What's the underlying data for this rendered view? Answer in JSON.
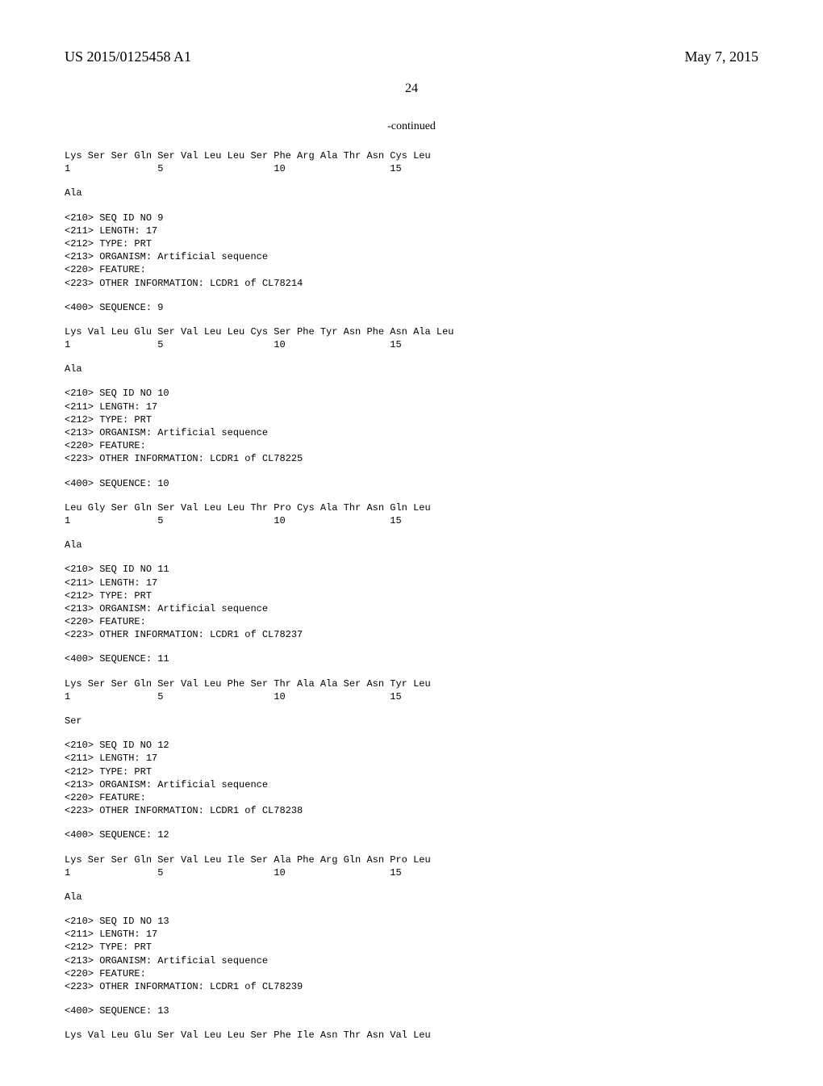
{
  "header": {
    "left": "US 2015/0125458 A1",
    "right": "May 7, 2015"
  },
  "page_number": "24",
  "continued": "-continued",
  "blocks": [
    {
      "type": "seq",
      "text": "Lys Ser Ser Gln Ser Val Leu Leu Ser Phe Arg Ala Thr Asn Cys Leu\n1               5                   10                  15"
    },
    {
      "type": "seq",
      "text": "Ala"
    },
    {
      "type": "meta",
      "lines": [
        "<210> SEQ ID NO 9",
        "<211> LENGTH: 17",
        "<212> TYPE: PRT",
        "<213> ORGANISM: Artificial sequence",
        "<220> FEATURE:",
        "<223> OTHER INFORMATION: LCDR1 of CL78214"
      ]
    },
    {
      "type": "meta",
      "lines": [
        "<400> SEQUENCE: 9"
      ]
    },
    {
      "type": "seq",
      "text": "Lys Val Leu Glu Ser Val Leu Leu Cys Ser Phe Tyr Asn Phe Asn Ala Leu\n1               5                   10                  15"
    },
    {
      "type": "seq",
      "text": "Ala"
    },
    {
      "type": "meta",
      "lines": [
        "<210> SEQ ID NO 10",
        "<211> LENGTH: 17",
        "<212> TYPE: PRT",
        "<213> ORGANISM: Artificial sequence",
        "<220> FEATURE:",
        "<223> OTHER INFORMATION: LCDR1 of CL78225"
      ]
    },
    {
      "type": "meta",
      "lines": [
        "<400> SEQUENCE: 10"
      ]
    },
    {
      "type": "seq",
      "text": "Leu Gly Ser Gln Ser Val Leu Leu Thr Pro Cys Ala Thr Asn Gln Leu\n1               5                   10                  15"
    },
    {
      "type": "seq",
      "text": "Ala"
    },
    {
      "type": "meta",
      "lines": [
        "<210> SEQ ID NO 11",
        "<211> LENGTH: 17",
        "<212> TYPE: PRT",
        "<213> ORGANISM: Artificial sequence",
        "<220> FEATURE:",
        "<223> OTHER INFORMATION: LCDR1 of CL78237"
      ]
    },
    {
      "type": "meta",
      "lines": [
        "<400> SEQUENCE: 11"
      ]
    },
    {
      "type": "seq",
      "text": "Lys Ser Ser Gln Ser Val Leu Phe Ser Thr Ala Ala Ser Asn Tyr Leu\n1               5                   10                  15"
    },
    {
      "type": "seq",
      "text": "Ser"
    },
    {
      "type": "meta",
      "lines": [
        "<210> SEQ ID NO 12",
        "<211> LENGTH: 17",
        "<212> TYPE: PRT",
        "<213> ORGANISM: Artificial sequence",
        "<220> FEATURE:",
        "<223> OTHER INFORMATION: LCDR1 of CL78238"
      ]
    },
    {
      "type": "meta",
      "lines": [
        "<400> SEQUENCE: 12"
      ]
    },
    {
      "type": "seq",
      "text": "Lys Ser Ser Gln Ser Val Leu Ile Ser Ala Phe Arg Gln Asn Pro Leu\n1               5                   10                  15"
    },
    {
      "type": "seq",
      "text": "Ala"
    },
    {
      "type": "meta",
      "lines": [
        "<210> SEQ ID NO 13",
        "<211> LENGTH: 17",
        "<212> TYPE: PRT",
        "<213> ORGANISM: Artificial sequence",
        "<220> FEATURE:",
        "<223> OTHER INFORMATION: LCDR1 of CL78239"
      ]
    },
    {
      "type": "meta",
      "lines": [
        "<400> SEQUENCE: 13"
      ]
    },
    {
      "type": "seq",
      "text": "Lys Val Leu Glu Ser Val Leu Leu Ser Phe Ile Asn Thr Asn Val Leu"
    }
  ]
}
